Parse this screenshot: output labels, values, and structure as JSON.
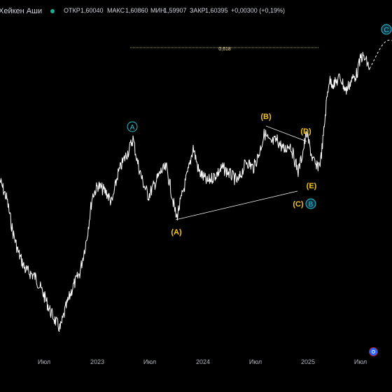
{
  "header": {
    "title": "Хейкен Аши",
    "open_label": "ОТКР",
    "open_value": "1,60040",
    "high_label": "МАКС",
    "high_value": "1,60860",
    "low_label": "МИН",
    "low_value": "1,59907",
    "close_label": "ЗАКР",
    "close_value": "1,60395",
    "change": "+0,00300 (+0,19%)"
  },
  "fib_label": "0,618",
  "wave_labels": {
    "A_circle": "A",
    "B_circle": "B",
    "C_circle": "C",
    "A_paren": "(A)",
    "B_paren": "(B)",
    "C_paren": "(C)",
    "D_paren": "(D)",
    "E_paren": "(E)"
  },
  "x_axis": [
    "Июл",
    "2023",
    "Июл",
    "2024",
    "Июл",
    "2025",
    "Июл"
  ],
  "colors": {
    "background": "#000000",
    "price_line": "#ffffff",
    "wave_yellow": "#f5c518",
    "wave_cyan": "#26c6da",
    "fib_line": "#f5e9a0",
    "live_dot": "#22ab94"
  },
  "icons": {
    "settings": "settings-icon",
    "live_status": "live-dot-icon"
  }
}
